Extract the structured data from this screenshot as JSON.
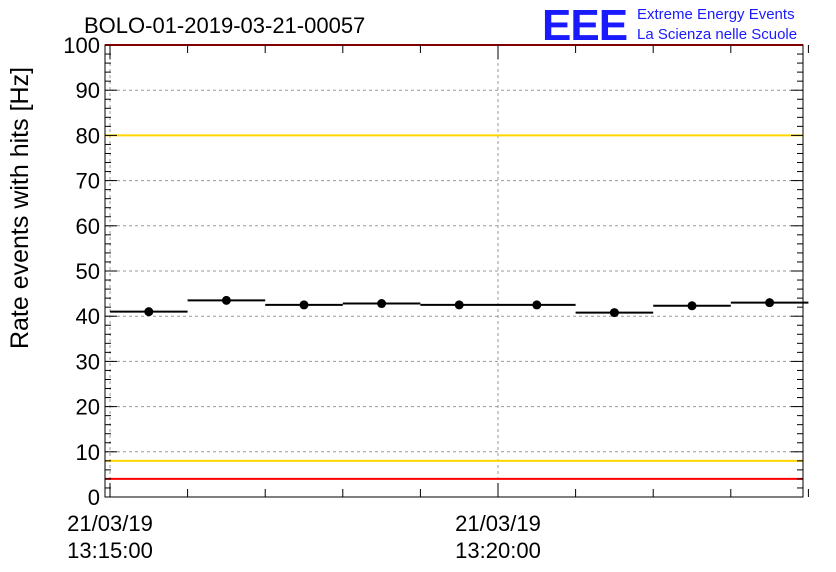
{
  "title": "BOLO-01-2019-03-21-00057",
  "logo": {
    "mark": "EEE",
    "line1": "Extreme Energy Events",
    "line2": "La Scienza nelle Scuole"
  },
  "colors": {
    "points": "#000000",
    "red_limit": "#ff0000",
    "yellow_limit": "#ffd700",
    "grid": "#9a9a9a",
    "logo": "#1a1aff"
  },
  "chart_data": {
    "type": "scatter",
    "title": "BOLO-01-2019-03-21-00057",
    "ylabel": "Rate events with hits [Hz]",
    "xlabel": "",
    "ylim": [
      0,
      100
    ],
    "yticks": [
      0,
      10,
      20,
      30,
      40,
      50,
      60,
      70,
      80,
      90,
      100
    ],
    "xlim_minutes": [
      0,
      9
    ],
    "xticks": [
      {
        "minute": 0,
        "date": "21/03/19",
        "time": "13:15:00"
      },
      {
        "minute": 5,
        "date": "21/03/19",
        "time": "13:20:00"
      }
    ],
    "grid": true,
    "points": [
      {
        "x_start": 0,
        "x_end": 1,
        "y": 41.0
      },
      {
        "x_start": 1,
        "x_end": 2,
        "y": 43.5
      },
      {
        "x_start": 2,
        "x_end": 3,
        "y": 42.5
      },
      {
        "x_start": 3,
        "x_end": 4,
        "y": 42.8
      },
      {
        "x_start": 4,
        "x_end": 5,
        "y": 42.5
      },
      {
        "x_start": 5,
        "x_end": 6,
        "y": 42.5
      },
      {
        "x_start": 6,
        "x_end": 7,
        "y": 40.8
      },
      {
        "x_start": 7,
        "x_end": 8,
        "y": 42.3
      },
      {
        "x_start": 8,
        "x_end": 9,
        "y": 43.0
      }
    ],
    "reference_lines": [
      {
        "name": "upper-red-limit",
        "y": 100,
        "color": "#ff0000"
      },
      {
        "name": "upper-yellow-limit",
        "y": 80,
        "color": "#ffd700"
      },
      {
        "name": "lower-yellow-limit",
        "y": 8,
        "color": "#ffd700"
      },
      {
        "name": "lower-red-limit",
        "y": 4,
        "color": "#ff0000"
      }
    ]
  }
}
